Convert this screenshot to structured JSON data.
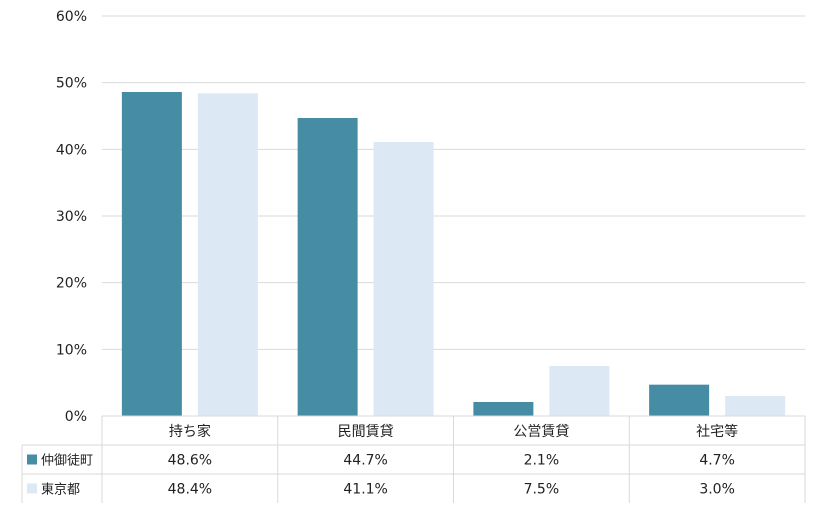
{
  "chart_data": {
    "type": "bar",
    "categories": [
      "持ち家",
      "民間賃貸",
      "公営賃貸",
      "社宅等"
    ],
    "series": [
      {
        "name": "仲御徒町",
        "values": [
          48.6,
          44.7,
          2.1,
          4.7
        ],
        "labels": [
          "48.6%",
          "44.7%",
          "2.1%",
          "4.7%"
        ],
        "color": "#468ca5"
      },
      {
        "name": "東京都",
        "values": [
          48.4,
          41.1,
          7.5,
          3.0
        ],
        "labels": [
          "48.4%",
          "41.1%",
          "7.5%",
          "3.0%"
        ],
        "color": "#dce9f5"
      }
    ],
    "ylim": [
      0,
      60
    ],
    "yticks": [
      "0%",
      "10%",
      "20%",
      "30%",
      "40%",
      "50%",
      "60%"
    ],
    "grid": true,
    "gridColor": "#d9d9d9",
    "legend": "data-table"
  }
}
